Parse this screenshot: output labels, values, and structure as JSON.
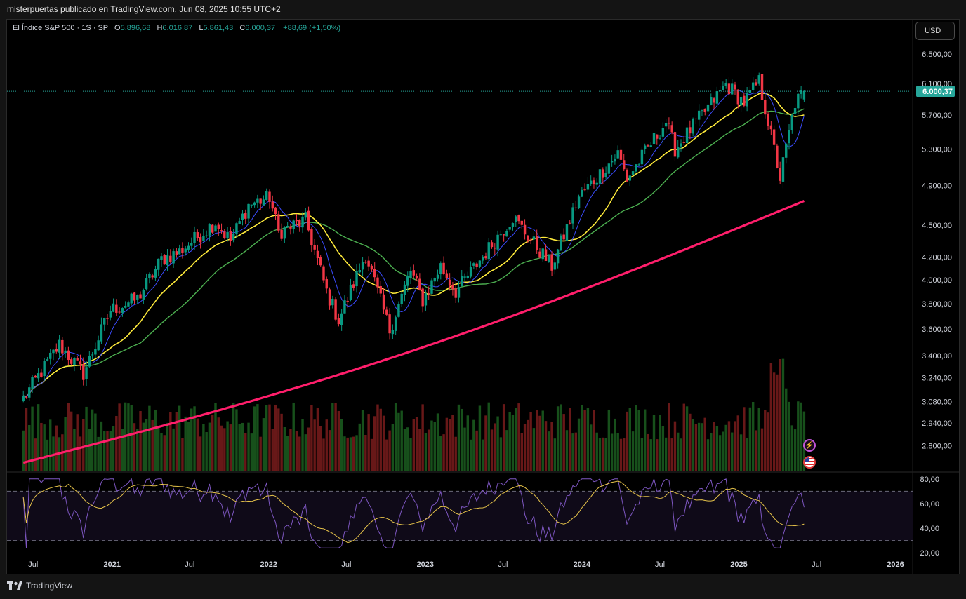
{
  "header": {
    "text": "misterpuertas publicado en TradingView.com, Jun 08, 2025 10:55 UTC+2"
  },
  "legend": {
    "symbol": "El Índice S&P 500 · 1S · SP",
    "open_label": "O",
    "open": "5.896,68",
    "high_label": "H",
    "high": "6.016,87",
    "low_label": "L",
    "low": "5.861,43",
    "close_label": "C",
    "close": "6.000,37",
    "change": "+88,69 (+1,50%)"
  },
  "currency_button": {
    "label": "USD"
  },
  "footer": {
    "brand": "TradingView"
  },
  "events": {
    "bolt_icon": "lightning-icon",
    "flag_icon": "us-flag-icon"
  },
  "colors": {
    "up": "#26a69a",
    "down": "#ef5350",
    "up_candle": "#089981",
    "down_candle": "#f23645",
    "ma_fast": "#3b4cff",
    "ma_mid": "#ffeb3b",
    "ma_slow": "#4caf50",
    "ma_long": "#ff1e6b",
    "rsi": "#7e57c2",
    "rsi_ma": "#e6c34a",
    "price_badge": "#26a69a"
  },
  "chart_data": {
    "type": "candlestick",
    "title": "El Índice S&P 500 · 1S · SP",
    "interval": "1W",
    "y_scale": "log",
    "ylim": [
      2650,
      7000
    ],
    "price_ticks": [
      "6.500,00",
      "6.100,00",
      "5.700,00",
      "5.300,00",
      "4.900,00",
      "4.500,00",
      "4.200,00",
      "4.000,00",
      "3.800,00",
      "3.600,00",
      "3.400,00",
      "3.240,00",
      "3.080,00",
      "2.940,00",
      "2.800,00"
    ],
    "last_price": "6.000,37",
    "x_ticks": [
      "Jul",
      "2021",
      "Jul",
      "2022",
      "Jul",
      "2023",
      "Jul",
      "2024",
      "Jul",
      "2025",
      "Jul",
      "2026"
    ],
    "close_anchors": [
      [
        "2020-06-08",
        3100
      ],
      [
        "2020-08-31",
        3480
      ],
      [
        "2020-10-26",
        3270
      ],
      [
        "2020-12-28",
        3750
      ],
      [
        "2021-03-01",
        3840
      ],
      [
        "2021-04-26",
        4180
      ],
      [
        "2021-06-07",
        4250
      ],
      [
        "2021-08-30",
        4530
      ],
      [
        "2021-10-04",
        4350
      ],
      [
        "2021-11-15",
        4700
      ],
      [
        "2022-01-03",
        4780
      ],
      [
        "2022-01-24",
        4430
      ],
      [
        "2022-03-28",
        4550
      ],
      [
        "2022-05-16",
        3900
      ],
      [
        "2022-06-13",
        3670
      ],
      [
        "2022-08-15",
        4230
      ],
      [
        "2022-10-10",
        3590
      ],
      [
        "2022-11-28",
        4080
      ],
      [
        "2022-12-26",
        3830
      ],
      [
        "2023-02-06",
        4120
      ],
      [
        "2023-03-13",
        3900
      ],
      [
        "2023-07-24",
        4580
      ],
      [
        "2023-10-23",
        4120
      ],
      [
        "2023-12-25",
        4780
      ],
      [
        "2024-03-25",
        5250
      ],
      [
        "2024-04-15",
        4970
      ],
      [
        "2024-07-15",
        5620
      ],
      [
        "2024-08-05",
        5300
      ],
      [
        "2024-12-02",
        6090
      ],
      [
        "2025-01-13",
        5860
      ],
      [
        "2025-02-17",
        6130
      ],
      [
        "2025-03-10",
        5620
      ],
      [
        "2025-04-07",
        4980
      ],
      [
        "2025-05-12",
        5850
      ],
      [
        "2025-06-02",
        6000.37
      ]
    ],
    "volume_note": "weekly volume histogram (green = up week, red = down week)",
    "moving_averages": [
      "MA 10",
      "MA 20",
      "MA 50",
      "MA 200"
    ],
    "rsi": {
      "ticks": [
        "80,00",
        "60,00",
        "40,00",
        "20,00"
      ],
      "ylim": [
        15,
        85
      ],
      "bands": [
        70,
        50,
        30
      ],
      "last": 57
    }
  }
}
